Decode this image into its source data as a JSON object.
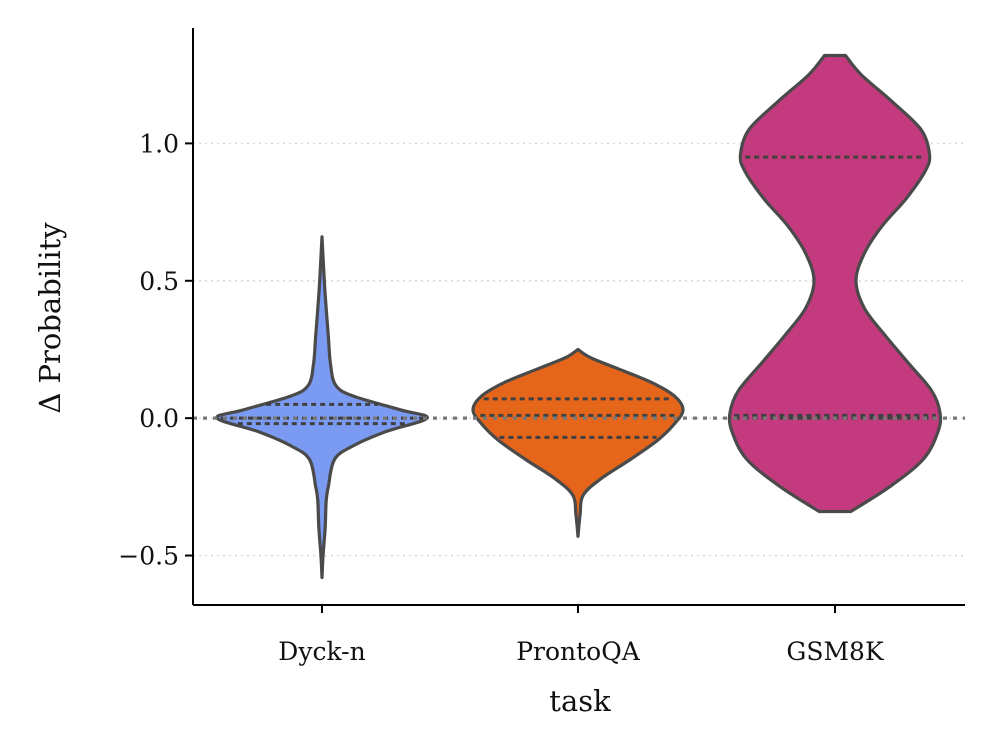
{
  "chart_data": {
    "type": "violin",
    "xlabel": "task",
    "ylabel": "Δ Probability",
    "ylim": [
      -0.68,
      1.42
    ],
    "yticks": [
      -0.5,
      0.0,
      0.5,
      1.0
    ],
    "ytick_labels": [
      "−0.5",
      "0.0",
      "0.5",
      "1.0"
    ],
    "grid": "horizontal dotted",
    "reference_line": 0.0,
    "categories": [
      "Dyck-n",
      "ProntoQA",
      "GSM8K"
    ],
    "series": [
      {
        "category": "Dyck-n",
        "color": "#7b9bf3",
        "range": [
          -0.58,
          0.66
        ],
        "quartiles": [
          -0.02,
          0.0,
          0.05
        ],
        "density": [
          [
            -0.58,
            0.0
          ],
          [
            -0.5,
            0.01
          ],
          [
            -0.4,
            0.03
          ],
          [
            -0.3,
            0.04
          ],
          [
            -0.25,
            0.06
          ],
          [
            -0.15,
            0.12
          ],
          [
            -0.1,
            0.3
          ],
          [
            -0.05,
            0.6
          ],
          [
            0.0,
            1.0
          ],
          [
            0.03,
            0.75
          ],
          [
            0.08,
            0.3
          ],
          [
            0.12,
            0.13
          ],
          [
            0.2,
            0.08
          ],
          [
            0.3,
            0.06
          ],
          [
            0.45,
            0.03
          ],
          [
            0.55,
            0.015
          ],
          [
            0.66,
            0.0
          ]
        ]
      },
      {
        "category": "ProntoQA",
        "color": "#e5661a",
        "range": [
          -0.43,
          0.25
        ],
        "quartiles": [
          -0.07,
          0.01,
          0.07
        ],
        "density": [
          [
            -0.43,
            0.0
          ],
          [
            -0.35,
            0.02
          ],
          [
            -0.28,
            0.05
          ],
          [
            -0.22,
            0.22
          ],
          [
            -0.15,
            0.5
          ],
          [
            -0.08,
            0.76
          ],
          [
            -0.02,
            0.92
          ],
          [
            0.03,
            1.0
          ],
          [
            0.08,
            0.92
          ],
          [
            0.13,
            0.7
          ],
          [
            0.18,
            0.38
          ],
          [
            0.22,
            0.12
          ],
          [
            0.25,
            0.0
          ]
        ]
      },
      {
        "category": "GSM8K",
        "color": "#c33a7e",
        "range": [
          -0.34,
          1.32
        ],
        "quartiles": [
          0.0,
          0.01,
          0.95
        ],
        "density": [
          [
            -0.34,
            0.15
          ],
          [
            -0.25,
            0.52
          ],
          [
            -0.15,
            0.84
          ],
          [
            -0.05,
            0.98
          ],
          [
            0.02,
            1.0
          ],
          [
            0.1,
            0.92
          ],
          [
            0.2,
            0.7
          ],
          [
            0.3,
            0.48
          ],
          [
            0.4,
            0.28
          ],
          [
            0.5,
            0.2
          ],
          [
            0.6,
            0.28
          ],
          [
            0.7,
            0.45
          ],
          [
            0.8,
            0.68
          ],
          [
            0.9,
            0.86
          ],
          [
            0.96,
            0.9
          ],
          [
            1.05,
            0.82
          ],
          [
            1.15,
            0.55
          ],
          [
            1.25,
            0.25
          ],
          [
            1.32,
            0.1
          ]
        ]
      }
    ]
  }
}
